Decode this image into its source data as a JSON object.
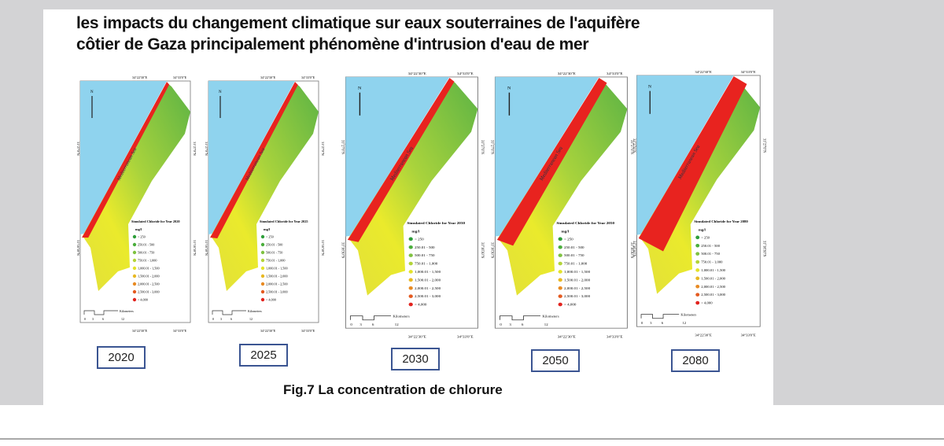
{
  "title_lines": [
    "les impacts du changement climatique sur eaux souterraines de l'aquifère",
    "côtier de Gaza principalement phénomène d'intrusion d'eau de mer"
  ],
  "caption": "Fig.7 La concentration de chlorure",
  "colors": {
    "sea": "#8fd3ee",
    "intrusion": "#e8231f",
    "land_green": "#5cb345",
    "land_yellow": "#eaea2c",
    "box_border": "#3b5592"
  },
  "map_common": {
    "sea_label": "Mediterranean Sea",
    "north": "N",
    "unit": "mg/l",
    "lon_labels": [
      "34°22'30\"E",
      "34°33'0\"E"
    ],
    "lat_labels": [
      "31°27'0\"N",
      "31°16'30\"N"
    ],
    "scale_label": "Kilometers",
    "scale_ticks": [
      "0",
      "3",
      "6",
      "12"
    ],
    "legend_items": [
      {
        "label": "< 250",
        "color": "#2e9e3a"
      },
      {
        "label": "250.01 - 500",
        "color": "#4aae3c"
      },
      {
        "label": "500.01 - 750",
        "color": "#7fc241"
      },
      {
        "label": "750.01 - 1,000",
        "color": "#b3d43a"
      },
      {
        "label": "1,000.01 - 1,500",
        "color": "#e3e22a"
      },
      {
        "label": "1,500.01 - 2,000",
        "color": "#e8b823"
      },
      {
        "label": "2,000.01 - 2,500",
        "color": "#e88a22"
      },
      {
        "label": "2,500.01 - 3,000",
        "color": "#e45a1f"
      },
      {
        "label": "> 4,000",
        "color": "#e2231e"
      }
    ]
  },
  "maps": [
    {
      "year": "2020",
      "legend_title": "Simulated Chloride for Year 2020",
      "intrusion_level": 0.1
    },
    {
      "year": "2025",
      "legend_title": "Simulated Chloride for Year 2025",
      "intrusion_level": 0.15
    },
    {
      "year": "2030",
      "legend_title": "Simulated Chloride for Year 2030",
      "intrusion_level": 0.25
    },
    {
      "year": "2050",
      "legend_title": "Simulated Chloride for Year 2050",
      "intrusion_level": 0.5
    },
    {
      "year": "2080",
      "legend_title": "Simulated Chloride for Year 2080",
      "intrusion_level": 1.0
    }
  ]
}
